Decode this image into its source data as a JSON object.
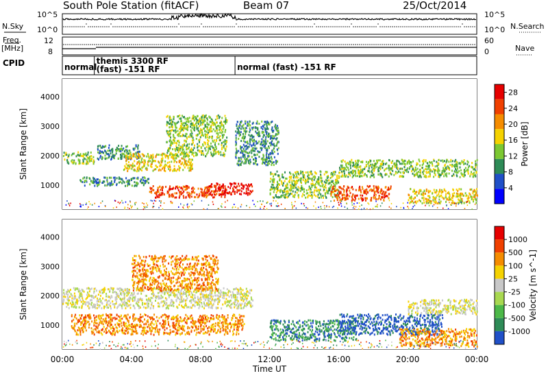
{
  "header": {
    "title": "South Pole Station (fitACF)",
    "beam": "Beam 07",
    "date": "25/Oct/2014"
  },
  "summary_panel": {
    "nsky_label": "N.Sky",
    "nsearch_label": "N.Search",
    "nsky_ticks_left": [
      "10^5",
      "10^0"
    ],
    "nsky_ticks_right": [
      "10^5",
      "10^0"
    ],
    "freq_label": "Freq.",
    "freq_unit": "[MHz]",
    "freq_ticks": [
      "12",
      "8"
    ],
    "nave_label": "Nave",
    "nave_ticks": [
      "60",
      "0"
    ],
    "cpid_label": "CPID",
    "cpid_segments": [
      {
        "start": 0.0,
        "lines": [
          "normal"
        ]
      },
      {
        "start": 1.85,
        "lines": [
          "themis 3300 RF",
          "(fast) -151 RF"
        ]
      },
      {
        "start": 10.0,
        "lines": [
          "normal (fast) -151 RF"
        ]
      }
    ]
  },
  "chart_data": [
    {
      "type": "heatmap",
      "panel": "power",
      "ylabel": "Slant Range [km]",
      "xlabel": "",
      "x_ticks": [
        "00:00",
        "04:00",
        "08:00",
        "12:00",
        "16:00",
        "20:00",
        "00:00"
      ],
      "y_ticks": [
        "1000",
        "2000",
        "3000",
        "4000"
      ],
      "xlim": [
        0,
        24
      ],
      "ylim": [
        180,
        4600
      ],
      "colorbar": {
        "label": "Power [dB]",
        "ticks": [
          "4",
          "8",
          "12",
          "16",
          "20",
          "24",
          "28"
        ],
        "range": [
          0,
          30
        ],
        "colors": [
          "#0000ff",
          "#2050c8",
          "#2e8b57",
          "#7cc832",
          "#f5d200",
          "#f58c00",
          "#f04000",
          "#e60000"
        ]
      },
      "features": [
        {
          "t0": 0.0,
          "t1": 1.8,
          "r0": 1750,
          "r1": 2150,
          "level": 3
        },
        {
          "t0": 1.0,
          "t1": 5.0,
          "r0": 1000,
          "r1": 1300,
          "level": 2
        },
        {
          "t0": 2.0,
          "t1": 4.5,
          "r0": 1900,
          "r1": 2400,
          "level": 2
        },
        {
          "t0": 3.5,
          "t1": 7.5,
          "r0": 1500,
          "r1": 2100,
          "level": 4
        },
        {
          "t0": 5.0,
          "t1": 9.5,
          "r0": 600,
          "r1": 1000,
          "level": 6
        },
        {
          "t0": 6.0,
          "t1": 9.5,
          "r0": 2000,
          "r1": 3400,
          "level": 3
        },
        {
          "t0": 8.5,
          "t1": 11.0,
          "r0": 700,
          "r1": 1100,
          "level": 7
        },
        {
          "t0": 10.0,
          "t1": 12.5,
          "r0": 1700,
          "r1": 3200,
          "level": 2
        },
        {
          "t0": 12.0,
          "t1": 16.0,
          "r0": 600,
          "r1": 1500,
          "level": 3
        },
        {
          "t0": 15.5,
          "t1": 19.0,
          "r0": 500,
          "r1": 1000,
          "level": 6
        },
        {
          "t0": 16.0,
          "t1": 24.0,
          "r0": 1300,
          "r1": 1900,
          "level": 3
        },
        {
          "t0": 20.0,
          "t1": 24.0,
          "r0": 400,
          "r1": 900,
          "level": 4
        }
      ]
    },
    {
      "type": "heatmap",
      "panel": "velocity",
      "ylabel": "Slant Range [km]",
      "xlabel": "Time UT",
      "x_ticks": [
        "00:00",
        "04:00",
        "08:00",
        "12:00",
        "16:00",
        "20:00",
        "00:00"
      ],
      "y_ticks": [
        "1000",
        "2000",
        "3000",
        "4000"
      ],
      "xlim": [
        0,
        24
      ],
      "ylim": [
        180,
        4600
      ],
      "colorbar": {
        "label": "Velocity [m s^-1]",
        "ticks": [
          "1000",
          "500",
          "100",
          "25",
          "-25",
          "-100",
          "-500",
          "-1000"
        ],
        "colors": [
          "#2050c8",
          "#2e8b57",
          "#4cb848",
          "#a8d850",
          "#c8c8c8",
          "#f5d200",
          "#f58c00",
          "#f04000",
          "#e60000"
        ]
      },
      "features": [
        {
          "t0": 0.0,
          "t1": 11.0,
          "r0": 1600,
          "r1": 2300,
          "level": 4
        },
        {
          "t0": 0.5,
          "t1": 10.5,
          "r0": 700,
          "r1": 1400,
          "level": 6
        },
        {
          "t0": 4.0,
          "t1": 9.0,
          "r0": 2200,
          "r1": 3400,
          "level": 6
        },
        {
          "t0": 12.0,
          "t1": 17.0,
          "r0": 500,
          "r1": 1200,
          "level": 1
        },
        {
          "t0": 16.0,
          "t1": 22.0,
          "r0": 700,
          "r1": 1400,
          "level": 0
        },
        {
          "t0": 19.5,
          "t1": 24.0,
          "r0": 300,
          "r1": 900,
          "level": 6
        },
        {
          "t0": 20.0,
          "t1": 24.0,
          "r0": 1400,
          "r1": 1900,
          "level": 4
        }
      ]
    }
  ]
}
